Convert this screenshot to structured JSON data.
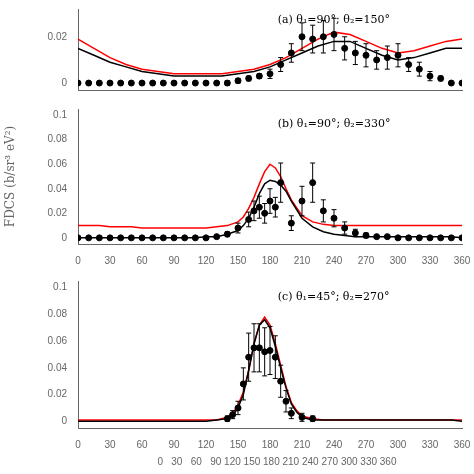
{
  "chart_data": [
    {
      "type": "line",
      "annotations": [
        "(a) θ₁=90°; θ₂=150°"
      ],
      "xlim": [
        0,
        360
      ],
      "xticks": [
        0,
        30,
        60,
        90,
        120,
        150,
        180,
        210,
        240,
        270,
        300,
        330,
        360
      ],
      "ylim": [
        -0.003,
        0.032
      ],
      "yticks": [
        0,
        0.02
      ],
      "grid": false,
      "tick_labels": "y",
      "series": [
        {
          "type": "line",
          "color": "#ff0000",
          "x": [
            0,
            15,
            30,
            45,
            60,
            75,
            90,
            105,
            120,
            135,
            150,
            165,
            180,
            195,
            210,
            225,
            240,
            255,
            270,
            285,
            300,
            315,
            330,
            345,
            360
          ],
          "values": [
            0.019,
            0.015,
            0.011,
            0.008,
            0.006,
            0.005,
            0.004,
            0.004,
            0.004,
            0.004,
            0.005,
            0.006,
            0.008,
            0.011,
            0.015,
            0.019,
            0.022,
            0.021,
            0.018,
            0.015,
            0.013,
            0.014,
            0.016,
            0.018,
            0.019
          ]
        },
        {
          "type": "line",
          "color": "#000000",
          "x": [
            0,
            15,
            30,
            45,
            60,
            75,
            90,
            105,
            120,
            135,
            150,
            165,
            180,
            195,
            210,
            225,
            240,
            255,
            270,
            285,
            300,
            315,
            330,
            345,
            360
          ],
          "values": [
            0.015,
            0.012,
            0.009,
            0.007,
            0.005,
            0.004,
            0.003,
            0.003,
            0.003,
            0.003,
            0.004,
            0.005,
            0.007,
            0.01,
            0.013,
            0.016,
            0.018,
            0.018,
            0.015,
            0.012,
            0.01,
            0.011,
            0.013,
            0.015,
            0.015
          ]
        },
        {
          "type": "scatter",
          "color": "#000000",
          "marker": "circle",
          "x": [
            0,
            10,
            20,
            30,
            40,
            50,
            60,
            70,
            80,
            90,
            100,
            110,
            120,
            130,
            140,
            150,
            160,
            170,
            180,
            190,
            200,
            210,
            220,
            230,
            240,
            250,
            260,
            270,
            280,
            290,
            300,
            310,
            320,
            330,
            340,
            350,
            360
          ],
          "values": [
            0.0,
            0.0,
            0.0,
            0.0,
            0.0,
            0.0,
            0.0,
            0.0,
            0.0,
            0.0,
            0.0,
            0.0,
            0.0,
            0.0,
            0.0,
            0.001,
            0.002,
            0.003,
            0.004,
            0.008,
            0.013,
            0.02,
            0.019,
            0.02,
            0.021,
            0.015,
            0.013,
            0.012,
            0.01,
            0.011,
            0.012,
            0.008,
            0.006,
            0.003,
            0.002,
            0.0,
            0.0
          ],
          "yerr": [
            0.0,
            0.0,
            0.0,
            0.0,
            0.0,
            0.0,
            0.0,
            0.0,
            0.0,
            0.0,
            0.0,
            0.0,
            0.0,
            0.0,
            0.001,
            0.001,
            0.001,
            0.001,
            0.002,
            0.003,
            0.004,
            0.006,
            0.006,
            0.007,
            0.007,
            0.005,
            0.005,
            0.005,
            0.004,
            0.005,
            0.005,
            0.003,
            0.003,
            0.002,
            0.001,
            0.0,
            0.0
          ]
        }
      ]
    },
    {
      "type": "line",
      "annotations": [
        "(b) θ₁=90°; θ₂=330°"
      ],
      "y_label": "FDCS (b/sr³ eV²)",
      "xlim": [
        0,
        360
      ],
      "xticks": [
        0,
        30,
        60,
        90,
        120,
        150,
        180,
        210,
        240,
        270,
        300,
        330,
        360
      ],
      "ylim": [
        -0.005,
        0.105
      ],
      "yticks": [
        0,
        0.02,
        0.04,
        0.06,
        0.08,
        0.1
      ],
      "grid": false,
      "series": [
        {
          "type": "line",
          "color": "#ff0000",
          "x": [
            0,
            10,
            20,
            30,
            40,
            50,
            60,
            70,
            80,
            90,
            100,
            110,
            120,
            130,
            140,
            150,
            155,
            160,
            165,
            170,
            175,
            180,
            185,
            190,
            195,
            200,
            210,
            220,
            230,
            240,
            250,
            260,
            270,
            280,
            290,
            300,
            310,
            320,
            330,
            340,
            350,
            360
          ],
          "values": [
            0.01,
            0.01,
            0.01,
            0.009,
            0.009,
            0.009,
            0.008,
            0.008,
            0.008,
            0.008,
            0.008,
            0.008,
            0.008,
            0.009,
            0.01,
            0.013,
            0.017,
            0.024,
            0.033,
            0.044,
            0.054,
            0.06,
            0.057,
            0.05,
            0.04,
            0.031,
            0.018,
            0.013,
            0.011,
            0.01,
            0.01,
            0.01,
            0.01,
            0.01,
            0.01,
            0.01,
            0.01,
            0.01,
            0.01,
            0.01,
            0.01,
            0.01
          ]
        },
        {
          "type": "line",
          "color": "#000000",
          "x": [
            0,
            10,
            20,
            30,
            40,
            50,
            60,
            70,
            80,
            90,
            100,
            110,
            120,
            130,
            140,
            150,
            155,
            160,
            165,
            170,
            175,
            180,
            185,
            190,
            195,
            200,
            210,
            220,
            230,
            240,
            250,
            260,
            270,
            280,
            290,
            300,
            310,
            320,
            330,
            340,
            350,
            360
          ],
          "values": [
            0.0,
            0.0,
            0.0,
            0.0,
            0.0,
            0.0,
            0.0,
            0.0,
            0.0,
            0.0,
            0.0,
            0.0,
            0.001,
            0.001,
            0.003,
            0.006,
            0.01,
            0.016,
            0.025,
            0.036,
            0.044,
            0.047,
            0.046,
            0.043,
            0.038,
            0.03,
            0.016,
            0.009,
            0.005,
            0.003,
            0.002,
            0.001,
            0.001,
            0.001,
            0.001,
            0.001,
            0.001,
            0.001,
            0.001,
            0.001,
            0.001,
            0.0
          ]
        },
        {
          "type": "scatter",
          "color": "#000000",
          "marker": "circle",
          "x": [
            0,
            10,
            20,
            30,
            40,
            50,
            60,
            70,
            80,
            90,
            100,
            110,
            120,
            130,
            140,
            150,
            160,
            165,
            170,
            175,
            180,
            185,
            190,
            200,
            210,
            220,
            230,
            240,
            250,
            260,
            270,
            280,
            290,
            300,
            310,
            320,
            330,
            340,
            350,
            360
          ],
          "values": [
            0.0,
            0.0,
            0.0,
            0.0,
            0.0,
            0.0,
            0.0,
            0.0,
            0.0,
            0.0,
            0.0,
            0.0,
            0.0,
            0.001,
            0.003,
            0.008,
            0.015,
            0.022,
            0.025,
            0.02,
            0.03,
            0.025,
            0.045,
            0.012,
            0.03,
            0.045,
            0.022,
            0.016,
            0.008,
            0.004,
            0.002,
            0.001,
            0.001,
            0.0,
            0.0,
            0.0,
            0.0,
            0.0,
            0.0,
            0.0
          ],
          "yerr": [
            0.0,
            0.0,
            0.0,
            0.0,
            0.0,
            0.0,
            0.0,
            0.0,
            0.0,
            0.0,
            0.0,
            0.0,
            0.0,
            0.001,
            0.002,
            0.004,
            0.006,
            0.008,
            0.009,
            0.008,
            0.01,
            0.008,
            0.016,
            0.006,
            0.012,
            0.016,
            0.009,
            0.007,
            0.005,
            0.003,
            0.002,
            0.001,
            0.001,
            0.0,
            0.0,
            0.0,
            0.0,
            0.0,
            0.0,
            0.0
          ]
        }
      ]
    },
    {
      "type": "line",
      "annotations": [
        "(c) θ₁=45°; θ₂=270°"
      ],
      "x_label": "     0   30   60   90 120 150 180 210 240 270 300 330 360",
      "xlim": [
        0,
        360
      ],
      "xticks": [
        0,
        30,
        60,
        90,
        120,
        150,
        180,
        210,
        240,
        270,
        300,
        330,
        360
      ],
      "ylim": [
        -0.005,
        0.105
      ],
      "yticks": [
        0,
        0.02,
        0.04,
        0.06,
        0.08,
        0.1
      ],
      "grid": false,
      "series": [
        {
          "type": "line",
          "color": "#ff0000",
          "x": [
            0,
            10,
            20,
            30,
            40,
            50,
            60,
            70,
            80,
            90,
            100,
            110,
            120,
            130,
            140,
            145,
            150,
            155,
            160,
            165,
            170,
            175,
            180,
            185,
            190,
            195,
            200,
            205,
            210,
            220,
            230,
            240,
            250,
            260,
            270,
            280,
            290,
            300,
            310,
            320,
            330,
            340,
            350,
            360
          ],
          "values": [
            0.001,
            0.001,
            0.001,
            0.001,
            0.001,
            0.001,
            0.001,
            0.001,
            0.001,
            0.001,
            0.001,
            0.001,
            0.001,
            0.001,
            0.003,
            0.006,
            0.012,
            0.022,
            0.038,
            0.058,
            0.072,
            0.078,
            0.072,
            0.058,
            0.042,
            0.026,
            0.014,
            0.008,
            0.004,
            0.002,
            0.001,
            0.001,
            0.001,
            0.001,
            0.001,
            0.001,
            0.001,
            0.001,
            0.001,
            0.001,
            0.001,
            0.001,
            0.001,
            0.001
          ]
        },
        {
          "type": "line",
          "color": "#000000",
          "x": [
            0,
            10,
            20,
            30,
            40,
            50,
            60,
            70,
            80,
            90,
            100,
            110,
            120,
            130,
            140,
            145,
            150,
            155,
            160,
            165,
            170,
            175,
            180,
            185,
            190,
            195,
            200,
            205,
            210,
            220,
            230,
            240,
            250,
            260,
            270,
            280,
            290,
            300,
            310,
            320,
            330,
            340,
            350,
            360
          ],
          "values": [
            0.0,
            0.0,
            0.0,
            0.0,
            0.0,
            0.0,
            0.0,
            0.0,
            0.0,
            0.0,
            0.0,
            0.0,
            0.0,
            0.001,
            0.002,
            0.004,
            0.01,
            0.02,
            0.038,
            0.058,
            0.072,
            0.076,
            0.07,
            0.056,
            0.04,
            0.025,
            0.013,
            0.007,
            0.003,
            0.001,
            0.001,
            0.001,
            0.001,
            0.001,
            0.001,
            0.001,
            0.001,
            0.001,
            0.001,
            0.001,
            0.001,
            0.001,
            0.001,
            0.0
          ]
        },
        {
          "type": "scatter",
          "color": "#000000",
          "marker": "circle",
          "x": [
            140,
            145,
            150,
            155,
            160,
            165,
            170,
            175,
            180,
            185,
            190,
            195,
            200,
            210,
            220
          ],
          "values": [
            0.002,
            0.005,
            0.01,
            0.028,
            0.048,
            0.055,
            0.055,
            0.052,
            0.053,
            0.048,
            0.03,
            0.015,
            0.006,
            0.003,
            0.002
          ],
          "yerr": [
            0.002,
            0.003,
            0.005,
            0.012,
            0.018,
            0.018,
            0.018,
            0.018,
            0.018,
            0.016,
            0.012,
            0.008,
            0.004,
            0.003,
            0.002
          ]
        }
      ]
    }
  ]
}
